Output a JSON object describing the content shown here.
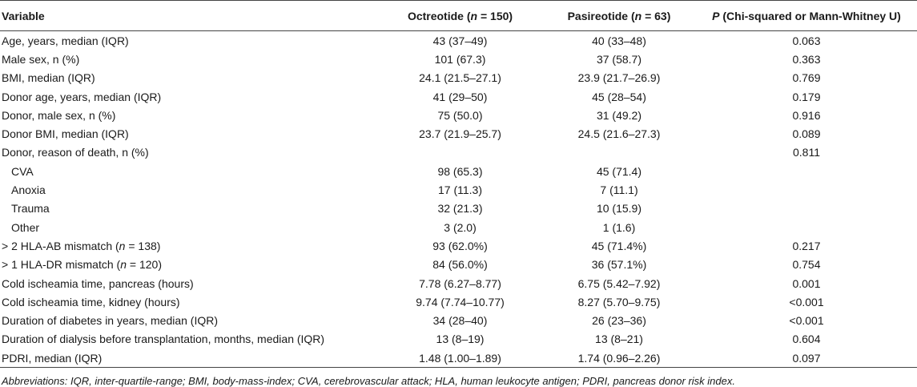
{
  "table": {
    "headers": {
      "variable": "Variable",
      "octreotide_pre": "Octreotide (",
      "octreotide_n": "n",
      "octreotide_post": " = 150)",
      "pasireotide_pre": "Pasireotide (",
      "pasireotide_n": "n",
      "pasireotide_post": " = 63)",
      "p_letter": "P",
      "p_rest": " (Chi-squared or Mann-Whitney U)"
    },
    "rows": [
      {
        "variable": "Age, years, median (IQR)",
        "octreotide": "43 (37–49)",
        "pasireotide": "40 (33–48)",
        "p": "0.063"
      },
      {
        "variable": "Male sex, n (%)",
        "octreotide": "101 (67.3)",
        "pasireotide": "37 (58.7)",
        "p": "0.363"
      },
      {
        "variable": "BMI, median (IQR)",
        "octreotide": "24.1 (21.5–27.1)",
        "pasireotide": "23.9 (21.7–26.9)",
        "p": "0.769"
      },
      {
        "variable": "Donor age, years, median (IQR)",
        "octreotide": "41 (29–50)",
        "pasireotide": "45 (28–54)",
        "p": "0.179"
      },
      {
        "variable": "Donor, male sex, n (%)",
        "octreotide": "75 (50.0)",
        "pasireotide": "31 (49.2)",
        "p": "0.916"
      },
      {
        "variable": "Donor BMI, median (IQR)",
        "octreotide": "23.7 (21.9–25.7)",
        "pasireotide": "24.5 (21.6–27.3)",
        "p": "0.089"
      },
      {
        "variable": "Donor, reason of death, n (%)",
        "octreotide": "",
        "pasireotide": "",
        "p": "0.811"
      },
      {
        "variable": "CVA",
        "octreotide": "98 (65.3)",
        "pasireotide": "45 (71.4)",
        "p": ""
      },
      {
        "variable": "Anoxia",
        "octreotide": "17 (11.3)",
        "pasireotide": "7 (11.1)",
        "p": ""
      },
      {
        "variable": "Trauma",
        "octreotide": "32 (21.3)",
        "pasireotide": "10 (15.9)",
        "p": ""
      },
      {
        "variable": "Other",
        "octreotide": "3 (2.0)",
        "pasireotide": "1 (1.6)",
        "p": ""
      },
      {
        "variable_pre": "> 2 HLA-AB mismatch (",
        "variable_n": "n",
        "variable_post": " = 138)",
        "octreotide": "93 (62.0%)",
        "pasireotide": "45 (71.4%)",
        "p": "0.217"
      },
      {
        "variable_pre": "> 1 HLA-DR mismatch (",
        "variable_n": "n",
        "variable_post": " = 120)",
        "octreotide": "84 (56.0%)",
        "pasireotide": "36 (57.1%)",
        "p": "0.754"
      },
      {
        "variable": "Cold ischeamia time, pancreas (hours)",
        "octreotide": "7.78 (6.27–8.77)",
        "pasireotide": "6.75 (5.42–7.92)",
        "p": "0.001"
      },
      {
        "variable": "Cold ischeamia time, kidney (hours)",
        "octreotide": "9.74 (7.74–10.77)",
        "pasireotide": "8.27 (5.70–9.75)",
        "p": "<0.001"
      },
      {
        "variable": "Duration of diabetes in years, median (IQR)",
        "octreotide": "34 (28–40)",
        "pasireotide": "26 (23–36)",
        "p": "<0.001"
      },
      {
        "variable": "Duration of dialysis before transplantation, months, median (IQR)",
        "octreotide": "13 (8–19)",
        "pasireotide": "13 (8–21)",
        "p": "0.604"
      },
      {
        "variable": "PDRI, median (IQR)",
        "octreotide": "1.48 (1.00–1.89)",
        "pasireotide": "1.74 (0.96–2.26)",
        "p": "0.097"
      }
    ]
  },
  "footnote": "Abbreviations: IQR, inter-quartile-range; BMI, body-mass-index; CVA, cerebrovascular attack; HLA, human leukocyte antigen; PDRI, pancreas donor risk index."
}
